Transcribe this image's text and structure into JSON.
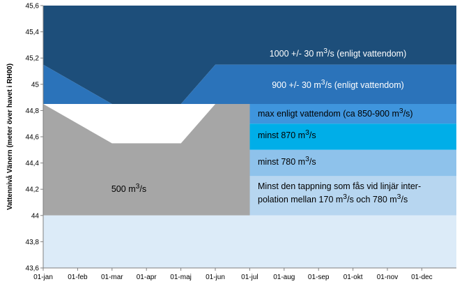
{
  "chart_data": {
    "type": "area",
    "ylabel": "Vattennivå  Vänern (meter över havet i RH00)",
    "ylim": [
      43.6,
      45.6
    ],
    "yticks": [
      "45,6",
      "45,4",
      "45,2",
      "45",
      "44,8",
      "44,6",
      "44,4",
      "44,2",
      "44",
      "43,8",
      "43,6"
    ],
    "ytick_values": [
      45.6,
      45.4,
      45.2,
      45.0,
      44.8,
      44.6,
      44.4,
      44.2,
      44.0,
      43.8,
      43.6
    ],
    "xticks": [
      "01-jan",
      "01-feb",
      "01-mar",
      "01-apr",
      "01-maj",
      "01-jun",
      "01-jul",
      "01-aug",
      "01-sep",
      "01-okt",
      "01-nov",
      "01-dec"
    ],
    "grid": false,
    "zones": [
      {
        "key": "z1000",
        "color": "#1d4e7a",
        "label_html": "1000 +/- 30 m<sup>3</sup>/s (enligt vattendom)",
        "label_color": "#ffffff",
        "upper": [
          [
            0,
            45.6
          ],
          [
            12,
            45.6
          ]
        ],
        "lower": [
          [
            0,
            45.15
          ],
          [
            2,
            44.85
          ],
          [
            4,
            44.85
          ],
          [
            5,
            45.15
          ],
          [
            12,
            45.15
          ]
        ]
      },
      {
        "key": "z900",
        "color": "#2b73ba",
        "label_html": "900 +/- 30 m<sup>3</sup>/s (enligt vattendom)",
        "label_color": "#ffffff",
        "upper": [
          [
            0,
            45.15
          ],
          [
            2,
            44.85
          ],
          [
            4,
            44.85
          ],
          [
            5,
            45.15
          ],
          [
            12,
            45.15
          ]
        ],
        "lower": [
          [
            0,
            44.85
          ],
          [
            5,
            44.85
          ],
          [
            6,
            44.85
          ],
          [
            12,
            44.85
          ]
        ]
      },
      {
        "key": "zmax",
        "color": "#3f95dd",
        "label_html": "max enligt vattendom (ca 850-900 m<sup>3</sup>/s)",
        "label_color": "#000000",
        "upper": [
          [
            6,
            44.85
          ],
          [
            12,
            44.85
          ]
        ],
        "lower": [
          [
            6,
            44.7
          ],
          [
            12,
            44.7
          ]
        ]
      },
      {
        "key": "z870",
        "color": "#00aee8",
        "label_html": "minst 870 m<sup>3</sup>/s",
        "label_color": "#000000",
        "upper": [
          [
            6,
            44.7
          ],
          [
            12,
            44.7
          ]
        ],
        "lower": [
          [
            6,
            44.5
          ],
          [
            12,
            44.5
          ]
        ]
      },
      {
        "key": "z780",
        "color": "#8ec2eb",
        "label_html": "minst 780 m<sup>3</sup>/s",
        "label_color": "#000000",
        "upper": [
          [
            6,
            44.5
          ],
          [
            12,
            44.5
          ]
        ],
        "lower": [
          [
            6,
            44.3
          ],
          [
            12,
            44.3
          ]
        ]
      },
      {
        "key": "zinterp",
        "color": "#b7d6f0",
        "label_html": "Minst den tappning som fås vid linjär inter-<br>polation mellan 170 m<sup>3</sup>/s och 780 m<sup>3</sup>/s",
        "label_color": "#000000",
        "upper": [
          [
            6,
            44.3
          ],
          [
            12,
            44.3
          ]
        ],
        "lower": [
          [
            6,
            44.0
          ],
          [
            12,
            44.0
          ]
        ]
      },
      {
        "key": "z500",
        "color": "#a6a6a6",
        "label_html": "500 m<sup>3</sup>/s",
        "label_color": "#000000",
        "upper": [
          [
            0,
            44.85
          ],
          [
            2,
            44.55
          ],
          [
            4,
            44.55
          ],
          [
            5,
            44.85
          ],
          [
            6,
            44.85
          ]
        ],
        "lower": [
          [
            0,
            44.0
          ],
          [
            6,
            44.0
          ]
        ]
      },
      {
        "key": "zbase",
        "color": "#dcebf8",
        "label_html": "",
        "label_color": "#000000",
        "upper": [
          [
            0,
            44.0
          ],
          [
            12,
            44.0
          ]
        ],
        "lower": [
          [
            0,
            43.6
          ],
          [
            12,
            43.6
          ]
        ]
      }
    ]
  }
}
